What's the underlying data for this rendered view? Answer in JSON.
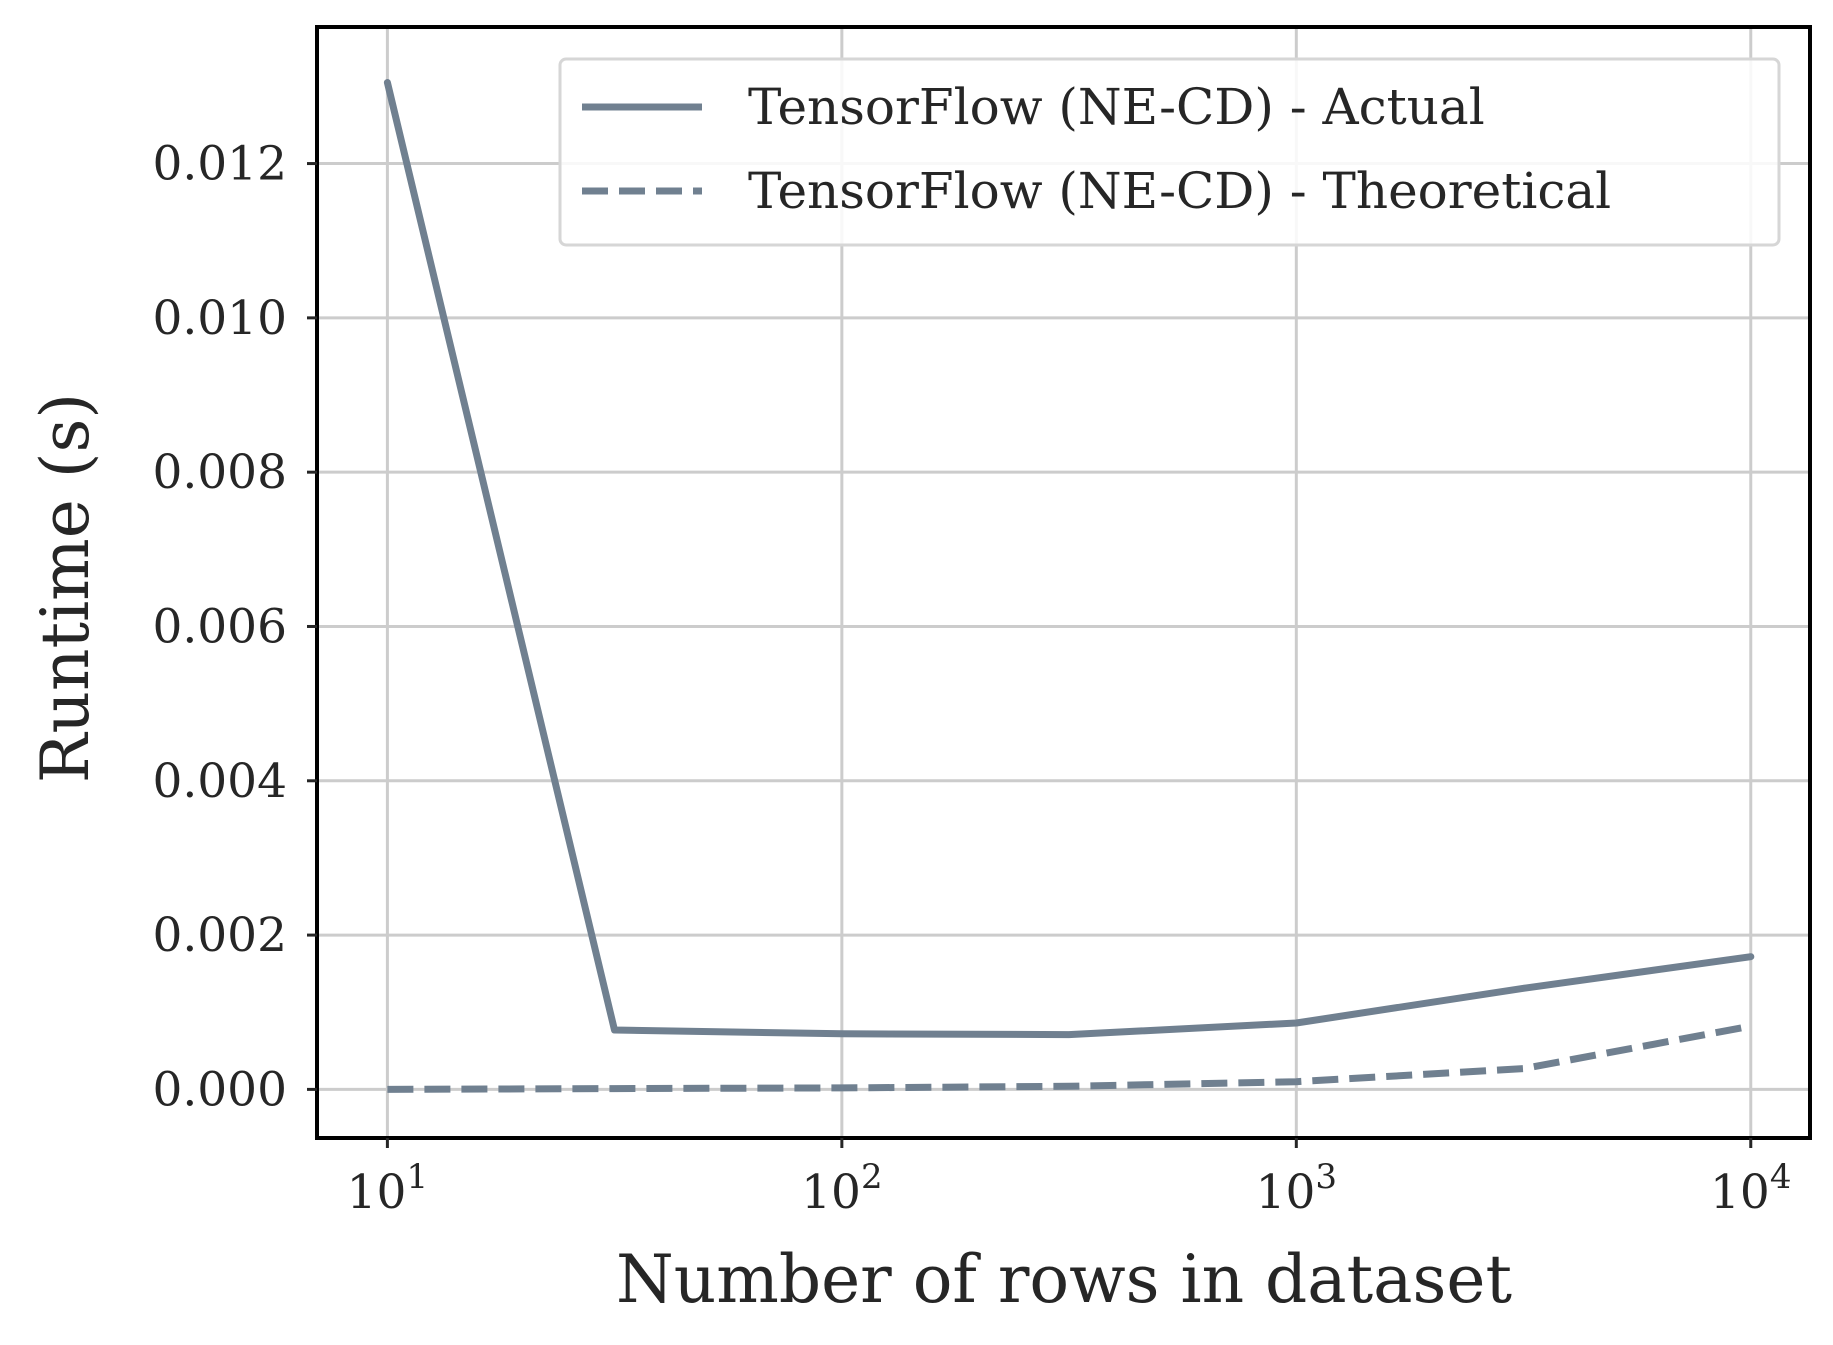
{
  "chart_data": {
    "type": "line",
    "xlabel": "Number of rows in dataset",
    "ylabel": "Runtime (s)",
    "xscale": "log",
    "xlim": [
      7.0,
      13500
    ],
    "ylim": [
      -0.00063,
      0.01377
    ],
    "x_ticks": [
      {
        "value": 10,
        "base": "10",
        "exp": "1"
      },
      {
        "value": 100,
        "base": "10",
        "exp": "2"
      },
      {
        "value": 1000,
        "base": "10",
        "exp": "3"
      },
      {
        "value": 10000,
        "base": "10",
        "exp": "4"
      }
    ],
    "y_ticks": [
      {
        "value": 0.0,
        "label": "0.000"
      },
      {
        "value": 0.002,
        "label": "0.002"
      },
      {
        "value": 0.004,
        "label": "0.004"
      },
      {
        "value": 0.006,
        "label": "0.006"
      },
      {
        "value": 0.008,
        "label": "0.008"
      },
      {
        "value": 0.01,
        "label": "0.010"
      },
      {
        "value": 0.012,
        "label": "0.012"
      }
    ],
    "grid": true,
    "legend_position": "top-right",
    "series": [
      {
        "name": "TensorFlow (NE-CD) - Actual",
        "style": "solid",
        "color": "#708090",
        "x": [
          10,
          31.6,
          100,
          316,
          1000,
          3162,
          10000
        ],
        "y": [
          0.01305,
          0.00077,
          0.00072,
          0.00071,
          0.00086,
          0.00131,
          0.00172
        ]
      },
      {
        "name": "TensorFlow (NE-CD) - Theoretical",
        "style": "dashed",
        "color": "#708090",
        "x": [
          10,
          31.6,
          100,
          316,
          1000,
          3162,
          10000
        ],
        "y": [
          0.0,
          1e-05,
          2e-05,
          4e-05,
          0.0001,
          0.00027,
          0.00082
        ]
      }
    ]
  }
}
